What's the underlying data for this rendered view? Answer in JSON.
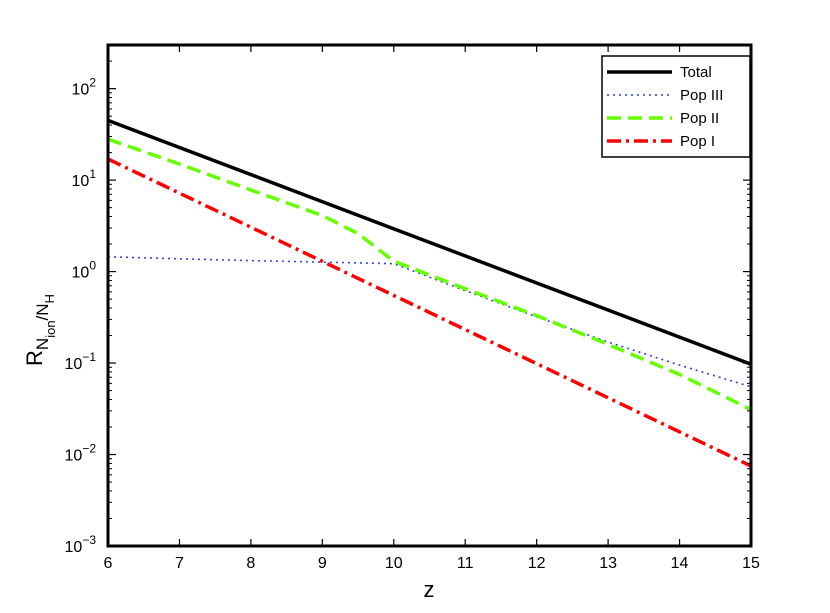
{
  "chart_data": {
    "type": "line",
    "title": "",
    "xlabel": "z",
    "ylabel": {
      "main": "R",
      "sub1": "N",
      "subsub1": "ion",
      "slash": "/N",
      "sub2": "H"
    },
    "xlim": [
      6,
      15
    ],
    "ylim": [
      0.001,
      300
    ],
    "yscale": "log",
    "grid": false,
    "legend_position": "top-right",
    "x_ticks": [
      "6",
      "7",
      "8",
      "9",
      "10",
      "11",
      "12",
      "13",
      "14",
      "15"
    ],
    "y_ticks": [
      {
        "value": 0.001,
        "base": "10",
        "exp": "−3"
      },
      {
        "value": 0.01,
        "base": "10",
        "exp": "−2"
      },
      {
        "value": 0.1,
        "base": "10",
        "exp": "−1"
      },
      {
        "value": 1,
        "base": "10",
        "exp": "0"
      },
      {
        "value": 10,
        "base": "10",
        "exp": "1"
      },
      {
        "value": 100,
        "base": "10",
        "exp": "2"
      }
    ],
    "series": [
      {
        "name": "Total",
        "color": "#000000",
        "style": "solid",
        "x": [
          6,
          15
        ],
        "y": [
          45,
          0.097
        ]
      },
      {
        "name": "Pop III",
        "color": "#3344cc",
        "style": "dotted",
        "x": [
          6,
          7,
          8,
          9,
          10,
          11,
          12,
          13,
          14,
          15
        ],
        "y": [
          1.45,
          1.38,
          1.32,
          1.27,
          1.22,
          0.62,
          0.32,
          0.17,
          0.095,
          0.055
        ]
      },
      {
        "name": "Pop II",
        "color": "#66ff00",
        "style": "dashed",
        "x": [
          6,
          7,
          8,
          9,
          9.5,
          10,
          11,
          12,
          13,
          14,
          15
        ],
        "y": [
          28,
          15,
          7.8,
          4.1,
          2.6,
          1.3,
          0.65,
          0.33,
          0.16,
          0.075,
          0.031
        ]
      },
      {
        "name": "Pop I",
        "color": "#ff0000",
        "style": "dashdot",
        "x": [
          6,
          15
        ],
        "y": [
          17,
          0.0075
        ]
      }
    ]
  }
}
